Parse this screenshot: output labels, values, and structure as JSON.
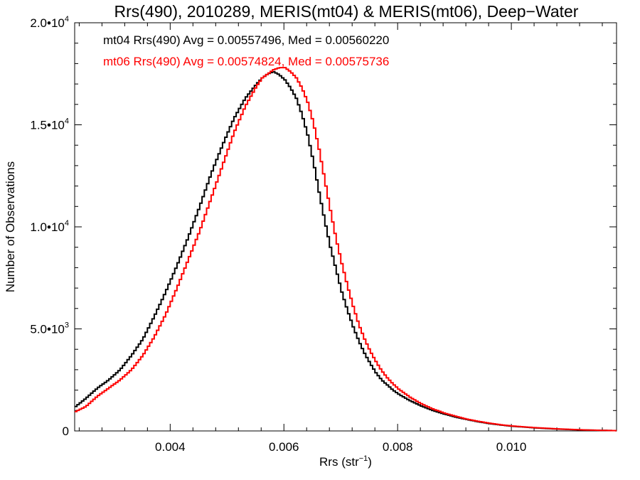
{
  "chart_data": {
    "type": "line",
    "title": "Rrs(490), 2010289, MERIS(mt04) & MERIS(mt06), Deep−Water",
    "xlabel": "Rrs (str",
    "xlabel_sup": "−1",
    "xlabel_close": ")",
    "ylabel": "Number of Observations",
    "xlim": [
      0.00232,
      0.01185
    ],
    "ylim": [
      0,
      20000
    ],
    "grid": false,
    "x_ticks": [
      {
        "value": 0.004,
        "label": "0.004"
      },
      {
        "value": 0.006,
        "label": "0.006"
      },
      {
        "value": 0.008,
        "label": "0.008"
      },
      {
        "value": 0.01,
        "label": "0.010"
      }
    ],
    "y_ticks": [
      {
        "value": 0,
        "label": "0",
        "sup": ""
      },
      {
        "value": 5000,
        "label": "5.0•10",
        "sup": "3"
      },
      {
        "value": 10000,
        "label": "1.0•10",
        "sup": "4"
      },
      {
        "value": 15000,
        "label": "1.5•10",
        "sup": "4"
      },
      {
        "value": 20000,
        "label": "2.0•10",
        "sup": "4"
      }
    ],
    "legend_placement": "top-left",
    "series": [
      {
        "name": "mt04",
        "color": "#000000",
        "legend_text": "mt04 Rrs(490) Avg = 0.00557496, Med = 0.00560220",
        "x": [
          0.00232,
          0.0025,
          0.0027,
          0.0029,
          0.0031,
          0.0033,
          0.0035,
          0.0037,
          0.0039,
          0.0041,
          0.0043,
          0.0045,
          0.0047,
          0.0049,
          0.0051,
          0.0053,
          0.0055,
          0.0056,
          0.0057,
          0.0058,
          0.0059,
          0.006,
          0.0061,
          0.0062,
          0.0063,
          0.0064,
          0.0065,
          0.0066,
          0.0067,
          0.0068,
          0.0069,
          0.007,
          0.0071,
          0.0072,
          0.0073,
          0.0074,
          0.0075,
          0.0076,
          0.0077,
          0.0078,
          0.0079,
          0.008,
          0.0082,
          0.0084,
          0.0086,
          0.0088,
          0.009,
          0.0092,
          0.0094,
          0.0096,
          0.0098,
          0.01,
          0.0104,
          0.0108,
          0.0112,
          0.0116,
          0.01185
        ],
        "y": [
          1200,
          1600,
          2100,
          2500,
          3000,
          3700,
          4500,
          5600,
          6800,
          8100,
          9500,
          11000,
          12600,
          14000,
          15300,
          16300,
          17000,
          17300,
          17500,
          17600,
          17450,
          17200,
          16800,
          16300,
          15500,
          14500,
          13200,
          11700,
          10300,
          9000,
          7900,
          6800,
          5900,
          5100,
          4400,
          3800,
          3300,
          2850,
          2500,
          2250,
          2000,
          1800,
          1480,
          1220,
          1000,
          830,
          680,
          560,
          450,
          360,
          290,
          230,
          150,
          90,
          50,
          25,
          15
        ]
      },
      {
        "name": "mt06",
        "color": "#ff0000",
        "legend_text": "mt06 Rrs(490) Avg = 0.00574824, Med = 0.00575736",
        "x": [
          0.00232,
          0.0025,
          0.0027,
          0.0029,
          0.0031,
          0.0033,
          0.0035,
          0.0037,
          0.0039,
          0.0041,
          0.0043,
          0.0045,
          0.0047,
          0.0049,
          0.0051,
          0.0053,
          0.0055,
          0.0056,
          0.0057,
          0.0058,
          0.0059,
          0.006,
          0.0061,
          0.0062,
          0.0063,
          0.0064,
          0.0065,
          0.0066,
          0.0067,
          0.0068,
          0.0069,
          0.007,
          0.0071,
          0.0072,
          0.0073,
          0.0074,
          0.0075,
          0.0076,
          0.0077,
          0.0078,
          0.0079,
          0.008,
          0.0082,
          0.0084,
          0.0086,
          0.0088,
          0.009,
          0.0092,
          0.0094,
          0.0096,
          0.0098,
          0.01,
          0.0104,
          0.0108,
          0.0112,
          0.0116,
          0.01185
        ],
        "y": [
          950,
          1200,
          1700,
          2100,
          2500,
          3000,
          3700,
          4600,
          5700,
          7000,
          8400,
          9800,
          11400,
          13000,
          14600,
          15900,
          16900,
          17300,
          17500,
          17700,
          17800,
          17800,
          17600,
          17300,
          16800,
          16100,
          15100,
          13800,
          12300,
          10800,
          9400,
          8200,
          7100,
          6100,
          5200,
          4500,
          3900,
          3400,
          2950,
          2600,
          2300,
          2050,
          1650,
          1330,
          1080,
          880,
          720,
          580,
          470,
          380,
          300,
          240,
          160,
          100,
          55,
          25,
          15
        ]
      }
    ]
  }
}
